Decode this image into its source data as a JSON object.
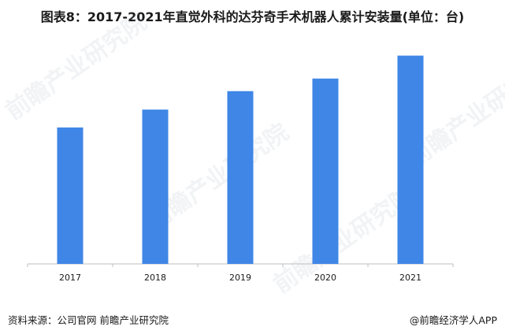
{
  "title": "图表8：2017-2021年直觉外科的达芬奇手术机器人累计安装量(单位：台)",
  "footer": {
    "source": "资料来源：公司官网 前瞻产业研究院",
    "brand": "@前瞻经济学人APP"
  },
  "watermark": "前瞻产业研究院",
  "colors": {
    "bar": "#3f86e6",
    "axis": "#bfbfbf",
    "text": "#1a1a1a"
  },
  "chart_data": {
    "type": "bar",
    "title": "图表8：2017-2021年直觉外科的达芬奇手术机器人累计安装量(单位：台)",
    "categories": [
      "2017",
      "2018",
      "2019",
      "2020",
      "2021"
    ],
    "series": [
      {
        "values": [
          4409,
          4986,
          5582,
          5989,
          6730
        ]
      }
    ],
    "ylim": [
      0,
      7000
    ],
    "grid": false,
    "legend": "none"
  }
}
